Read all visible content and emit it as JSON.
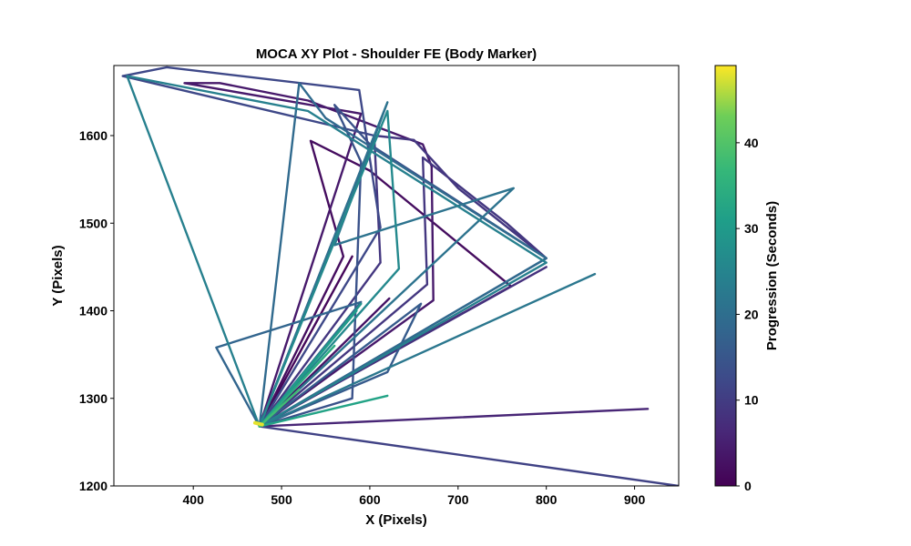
{
  "chart_data": {
    "type": "line",
    "title": "MOCA XY Plot - Shoulder FE (Body Marker)",
    "xlabel": "X (Pixels)",
    "ylabel": "Y (Pixels)",
    "xlim": [
      310,
      950
    ],
    "ylim": [
      1200,
      1680
    ],
    "xticks": [
      400,
      500,
      600,
      700,
      800,
      900
    ],
    "yticks": [
      1200,
      1300,
      1400,
      1500,
      1600
    ],
    "grid": false,
    "colormap": "viridis",
    "colorbar": {
      "label": "Progression (Seconds)",
      "range": [
        0,
        49
      ],
      "ticks": [
        0,
        10,
        20,
        30,
        40
      ]
    },
    "series": [
      {
        "t": 1,
        "points": [
          [
            475,
            1268
          ],
          [
            580,
            1462
          ],
          [
            475,
            1268
          ]
        ]
      },
      {
        "t": 2,
        "points": [
          [
            475,
            1268
          ],
          [
            570,
            1462
          ],
          [
            533,
            1594
          ],
          [
            600,
            1560
          ],
          [
            760,
            1428
          ],
          [
            475,
            1268
          ]
        ]
      },
      {
        "t": 3,
        "points": [
          [
            475,
            1268
          ],
          [
            622,
            1414
          ],
          [
            475,
            1268
          ]
        ]
      },
      {
        "t": 4,
        "points": [
          [
            475,
            1268
          ],
          [
            590,
            1625
          ],
          [
            390,
            1660
          ],
          [
            430,
            1660
          ],
          [
            530,
            1640
          ],
          [
            660,
            1590
          ],
          [
            670,
            1565
          ],
          [
            672,
            1412
          ],
          [
            475,
            1268
          ]
        ]
      },
      {
        "t": 6,
        "points": [
          [
            475,
            1268
          ],
          [
            915,
            1288
          ],
          [
            475,
            1268
          ]
        ]
      },
      {
        "t": 8,
        "points": [
          [
            475,
            1268
          ],
          [
            800,
            1450
          ],
          [
            475,
            1268
          ]
        ]
      },
      {
        "t": 9,
        "points": [
          [
            475,
            1268
          ],
          [
            612,
            1455
          ],
          [
            605,
            1600
          ],
          [
            650,
            1595
          ],
          [
            700,
            1540
          ],
          [
            800,
            1460
          ],
          [
            755,
            1500
          ],
          [
            660,
            1575
          ],
          [
            665,
            1430
          ],
          [
            475,
            1268
          ]
        ]
      },
      {
        "t": 11,
        "points": [
          [
            475,
            1268
          ],
          [
            950,
            1200
          ],
          [
            475,
            1268
          ]
        ]
      },
      {
        "t": 12,
        "points": [
          [
            475,
            1268
          ],
          [
            605,
            1600
          ],
          [
            320,
            1668
          ],
          [
            370,
            1678
          ],
          [
            588,
            1652
          ],
          [
            612,
            1495
          ],
          [
            475,
            1268
          ]
        ]
      },
      {
        "t": 14,
        "points": [
          [
            475,
            1268
          ],
          [
            800,
            1460
          ],
          [
            600,
            1590
          ],
          [
            560,
            1635
          ],
          [
            590,
            1570
          ],
          [
            580,
            1300
          ],
          [
            475,
            1268
          ]
        ]
      },
      {
        "t": 16,
        "points": [
          [
            475,
            1268
          ],
          [
            658,
            1408
          ],
          [
            620,
            1330
          ],
          [
            475,
            1268
          ]
        ]
      },
      {
        "t": 18,
        "points": [
          [
            475,
            1268
          ],
          [
            426,
            1358
          ],
          [
            590,
            1410
          ],
          [
            475,
            1268
          ]
        ]
      },
      {
        "t": 19,
        "points": [
          [
            475,
            1268
          ],
          [
            800,
            1460
          ],
          [
            550,
            1620
          ],
          [
            520,
            1660
          ],
          [
            475,
            1268
          ]
        ]
      },
      {
        "t": 21,
        "points": [
          [
            475,
            1268
          ],
          [
            763,
            1540
          ],
          [
            560,
            1475
          ],
          [
            620,
            1638
          ],
          [
            475,
            1268
          ]
        ]
      },
      {
        "t": 22,
        "points": [
          [
            475,
            1268
          ],
          [
            855,
            1442
          ],
          [
            475,
            1268
          ]
        ]
      },
      {
        "t": 24,
        "points": [
          [
            475,
            1268
          ],
          [
            800,
            1455
          ],
          [
            530,
            1628
          ],
          [
            325,
            1668
          ],
          [
            475,
            1268
          ]
        ]
      },
      {
        "t": 26,
        "points": [
          [
            475,
            1268
          ],
          [
            633,
            1448
          ],
          [
            620,
            1628
          ],
          [
            475,
            1268
          ]
        ]
      },
      {
        "t": 28,
        "points": [
          [
            475,
            1268
          ],
          [
            590,
            1408
          ],
          [
            475,
            1268
          ]
        ]
      },
      {
        "t": 30,
        "points": [
          [
            475,
            1268
          ],
          [
            585,
            1400
          ],
          [
            475,
            1268
          ]
        ]
      },
      {
        "t": 32,
        "points": [
          [
            475,
            1268
          ],
          [
            620,
            1303
          ],
          [
            475,
            1268
          ]
        ]
      },
      {
        "t": 34,
        "points": [
          [
            475,
            1268
          ],
          [
            560,
            1360
          ],
          [
            475,
            1268
          ]
        ]
      },
      {
        "t": 38,
        "points": [
          [
            475,
            1268
          ],
          [
            520,
            1310
          ],
          [
            475,
            1268
          ]
        ]
      },
      {
        "t": 48,
        "points": [
          [
            470,
            1272
          ],
          [
            478,
            1270
          ]
        ]
      }
    ]
  }
}
